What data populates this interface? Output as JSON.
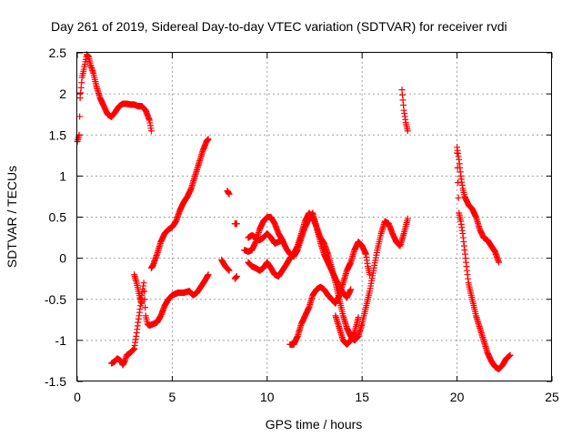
{
  "chart_data": {
    "type": "scatter",
    "title": "Day 261 of 2019, Sidereal Day-to-day VTEC variation (SDTVAR) for receiver rvdi",
    "xlabel": "GPS time / hours",
    "ylabel": "SDTVAR / TECUs",
    "xlim": [
      0,
      25
    ],
    "ylim": [
      -1.5,
      2.5
    ],
    "x_ticks": [
      "0",
      "5",
      "10",
      "15",
      "20",
      "25"
    ],
    "y_ticks": [
      "2.5",
      "2",
      "1.5",
      "1",
      "0.5",
      "0",
      "-0.5",
      "-1",
      "-1.5"
    ],
    "grid": true,
    "marker": "plus",
    "color": "#ff0000",
    "series": [
      {
        "segments": [
          [
            [
              0.0,
              1.42
            ],
            [
              0.1,
              1.5
            ],
            [
              0.15,
              1.95
            ],
            [
              0.25,
              2.2
            ],
            [
              0.35,
              2.3
            ],
            [
              0.45,
              2.42
            ],
            [
              0.5,
              2.48
            ],
            [
              0.6,
              2.45
            ],
            [
              0.7,
              2.35
            ],
            [
              0.85,
              2.25
            ],
            [
              1.0,
              2.1
            ],
            [
              1.2,
              1.95
            ],
            [
              1.4,
              1.85
            ],
            [
              1.6,
              1.75
            ],
            [
              1.8,
              1.72
            ],
            [
              2.0,
              1.78
            ],
            [
              2.2,
              1.85
            ],
            [
              2.4,
              1.88
            ],
            [
              2.6,
              1.88
            ],
            [
              2.8,
              1.87
            ],
            [
              3.0,
              1.87
            ],
            [
              3.2,
              1.85
            ],
            [
              3.4,
              1.85
            ],
            [
              3.6,
              1.8
            ],
            [
              3.8,
              1.68
            ],
            [
              3.9,
              1.55
            ]
          ],
          [
            [
              1.8,
              -1.28
            ],
            [
              2.0,
              -1.25
            ],
            [
              2.1,
              -1.22
            ],
            [
              2.3,
              -1.25
            ],
            [
              2.4,
              -1.3
            ],
            [
              2.5,
              -1.25
            ],
            [
              2.6,
              -1.18
            ],
            [
              2.8,
              -1.15
            ],
            [
              3.0,
              -1.1
            ],
            [
              3.1,
              -0.95
            ],
            [
              3.2,
              -0.78
            ],
            [
              3.3,
              -0.62
            ],
            [
              3.4,
              -0.45
            ],
            [
              3.5,
              -0.3
            ],
            [
              3.6,
              -0.7
            ],
            [
              3.7,
              -0.8
            ],
            [
              3.8,
              -0.82
            ],
            [
              4.0,
              -0.8
            ],
            [
              4.2,
              -0.78
            ],
            [
              4.4,
              -0.7
            ],
            [
              4.6,
              -0.58
            ],
            [
              4.8,
              -0.5
            ],
            [
              5.0,
              -0.45
            ],
            [
              5.3,
              -0.42
            ],
            [
              5.6,
              -0.42
            ],
            [
              5.9,
              -0.4
            ],
            [
              6.1,
              -0.45
            ],
            [
              6.3,
              -0.42
            ],
            [
              6.5,
              -0.35
            ],
            [
              6.7,
              -0.28
            ],
            [
              6.9,
              -0.2
            ]
          ],
          [
            [
              3.0,
              -0.2
            ],
            [
              3.1,
              -0.28
            ],
            [
              3.2,
              -0.38
            ],
            [
              3.3,
              -0.48
            ],
            [
              3.4,
              -0.55
            ]
          ],
          [
            [
              3.9,
              -0.12
            ],
            [
              4.0,
              -0.08
            ],
            [
              4.2,
              0.05
            ],
            [
              4.4,
              0.2
            ],
            [
              4.6,
              0.3
            ],
            [
              4.8,
              0.35
            ],
            [
              5.0,
              0.38
            ],
            [
              5.2,
              0.45
            ],
            [
              5.4,
              0.58
            ],
            [
              5.6,
              0.68
            ],
            [
              5.8,
              0.75
            ],
            [
              6.0,
              0.85
            ],
            [
              6.2,
              1.0
            ],
            [
              6.4,
              1.15
            ],
            [
              6.6,
              1.3
            ],
            [
              6.8,
              1.42
            ],
            [
              6.9,
              1.45
            ]
          ],
          [
            [
              7.9,
              0.82
            ],
            [
              8.0,
              0.78
            ]
          ],
          [
            [
              7.6,
              -0.02
            ],
            [
              7.8,
              -0.1
            ],
            [
              8.0,
              -0.15
            ]
          ],
          [
            [
              8.3,
              -0.25
            ],
            [
              8.4,
              -0.22
            ]
          ],
          [
            [
              8.3,
              0.42
            ],
            [
              8.4,
              0.42
            ]
          ],
          [
            [
              8.8,
              0.1
            ],
            [
              9.0,
              0.08
            ],
            [
              9.2,
              0.1
            ],
            [
              9.4,
              0.2
            ],
            [
              9.6,
              0.35
            ],
            [
              9.8,
              0.45
            ],
            [
              10.0,
              0.5
            ],
            [
              10.2,
              0.5
            ],
            [
              10.4,
              0.42
            ],
            [
              10.6,
              0.3
            ],
            [
              10.8,
              0.22
            ],
            [
              11.0,
              0.12
            ],
            [
              11.2,
              0.05
            ],
            [
              11.4,
              0.02
            ],
            [
              11.6,
              0.1
            ],
            [
              11.8,
              0.25
            ],
            [
              12.0,
              0.38
            ],
            [
              12.2,
              0.48
            ],
            [
              12.4,
              0.55
            ],
            [
              12.6,
              0.38
            ],
            [
              12.8,
              0.2
            ],
            [
              13.0,
              0.05
            ],
            [
              13.2,
              -0.05
            ],
            [
              13.4,
              -0.15
            ],
            [
              13.6,
              -0.25
            ],
            [
              13.8,
              -0.35
            ],
            [
              14.0,
              -0.42
            ],
            [
              14.2,
              -0.48
            ],
            [
              14.4,
              -0.38
            ]
          ],
          [
            [
              9.0,
              -0.05
            ],
            [
              9.2,
              -0.1
            ],
            [
              9.4,
              -0.12
            ],
            [
              9.6,
              -0.15
            ],
            [
              9.8,
              -0.12
            ],
            [
              10.0,
              -0.05
            ],
            [
              10.2,
              -0.12
            ],
            [
              10.4,
              -0.2
            ],
            [
              10.6,
              -0.22
            ],
            [
              10.8,
              -0.15
            ],
            [
              11.0,
              -0.08
            ],
            [
              11.2,
              0.0
            ],
            [
              11.4,
              0.05
            ],
            [
              11.6,
              0.15
            ],
            [
              11.8,
              0.3
            ],
            [
              12.0,
              0.45
            ],
            [
              12.2,
              0.55
            ],
            [
              12.4,
              0.5
            ],
            [
              12.6,
              0.38
            ],
            [
              12.8,
              0.25
            ],
            [
              13.0,
              0.18
            ],
            [
              13.2,
              0.05
            ],
            [
              13.4,
              -0.12
            ],
            [
              13.6,
              -0.3
            ],
            [
              13.8,
              -0.5
            ],
            [
              14.0,
              -0.7
            ],
            [
              14.2,
              -0.85
            ],
            [
              14.4,
              -0.95
            ],
            [
              14.6,
              -1.0
            ],
            [
              14.8,
              -0.95
            ],
            [
              15.0,
              -0.8
            ],
            [
              15.2,
              -0.6
            ],
            [
              15.4,
              -0.4
            ],
            [
              15.6,
              -0.15
            ],
            [
              15.8,
              0.1
            ],
            [
              16.0,
              0.3
            ],
            [
              16.2,
              0.45
            ],
            [
              16.4,
              0.42
            ],
            [
              16.6,
              0.3
            ],
            [
              16.8,
              0.2
            ],
            [
              17.0,
              0.15
            ],
            [
              17.2,
              0.3
            ],
            [
              17.4,
              0.48
            ]
          ],
          [
            [
              9.0,
              0.25
            ],
            [
              9.2,
              0.28
            ],
            [
              9.4,
              0.25
            ],
            [
              9.6,
              0.22
            ],
            [
              9.8,
              0.25
            ],
            [
              10.0,
              0.3
            ],
            [
              10.2,
              0.25
            ],
            [
              10.4,
              0.18
            ],
            [
              10.6,
              0.2
            ],
            [
              10.8,
              0.22
            ]
          ],
          [
            [
              11.2,
              -1.05
            ],
            [
              11.4,
              -1.05
            ],
            [
              11.6,
              -0.95
            ],
            [
              11.8,
              -0.8
            ],
            [
              12.0,
              -0.7
            ],
            [
              12.2,
              -0.6
            ],
            [
              12.4,
              -0.45
            ],
            [
              12.6,
              -0.38
            ],
            [
              12.8,
              -0.35
            ],
            [
              13.0,
              -0.38
            ],
            [
              13.2,
              -0.45
            ],
            [
              13.4,
              -0.5
            ],
            [
              13.6,
              -0.55
            ],
            [
              13.8,
              -0.45
            ],
            [
              14.0,
              -0.3
            ],
            [
              14.2,
              -0.15
            ],
            [
              14.4,
              -0.05
            ],
            [
              14.6,
              0.1
            ],
            [
              14.8,
              0.2
            ],
            [
              15.0,
              0.15
            ],
            [
              15.2,
              0.05
            ],
            [
              15.3,
              -0.1
            ],
            [
              15.4,
              -0.2
            ]
          ],
          [
            [
              13.6,
              -0.7
            ],
            [
              13.8,
              -0.85
            ],
            [
              14.0,
              -1.0
            ],
            [
              14.2,
              -1.05
            ],
            [
              14.4,
              -1.0
            ],
            [
              14.6,
              -0.9
            ],
            [
              14.8,
              -0.72
            ]
          ],
          [
            [
              17.1,
              2.05
            ],
            [
              17.2,
              1.8
            ],
            [
              17.3,
              1.65
            ],
            [
              17.4,
              1.55
            ]
          ],
          [
            [
              20.0,
              1.35
            ],
            [
              20.1,
              1.2
            ],
            [
              20.2,
              1.0
            ],
            [
              20.3,
              0.85
            ],
            [
              20.4,
              0.75
            ],
            [
              20.6,
              0.65
            ],
            [
              20.8,
              0.6
            ],
            [
              21.0,
              0.5
            ],
            [
              21.2,
              0.35
            ],
            [
              21.4,
              0.25
            ],
            [
              21.6,
              0.22
            ],
            [
              21.8,
              0.15
            ],
            [
              22.0,
              0.08
            ],
            [
              22.2,
              -0.05
            ]
          ],
          [
            [
              20.0,
              1.28
            ],
            [
              20.05,
              0.92
            ],
            [
              20.1,
              0.55
            ],
            [
              20.2,
              0.45
            ],
            [
              20.3,
              0.3
            ],
            [
              20.4,
              0.1
            ],
            [
              20.5,
              -0.1
            ],
            [
              20.6,
              -0.3
            ],
            [
              20.8,
              -0.5
            ],
            [
              21.0,
              -0.7
            ],
            [
              21.2,
              -0.85
            ],
            [
              21.4,
              -1.0
            ],
            [
              21.6,
              -1.15
            ],
            [
              21.8,
              -1.25
            ],
            [
              22.0,
              -1.32
            ],
            [
              22.2,
              -1.35
            ],
            [
              22.4,
              -1.3
            ],
            [
              22.6,
              -1.22
            ],
            [
              22.8,
              -1.18
            ]
          ]
        ]
      }
    ]
  }
}
